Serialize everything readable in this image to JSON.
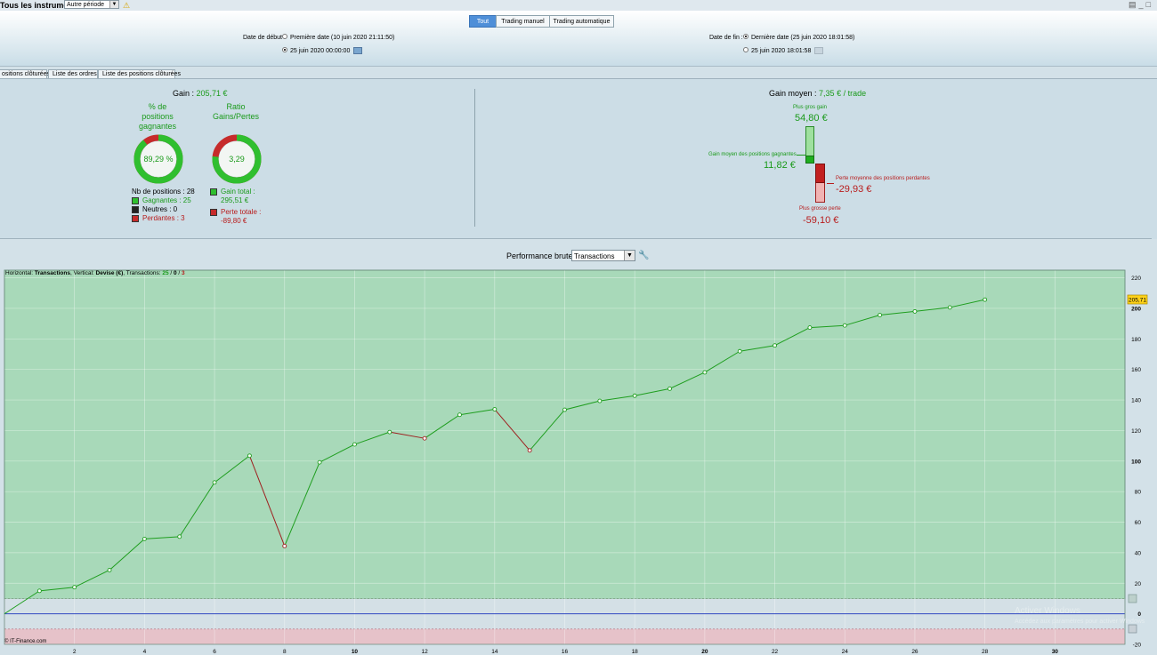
{
  "toolbar": {
    "instruments_label": "Tous les instruments",
    "period_value": "Autre période",
    "warning_icon": "warning-icon"
  },
  "filters": {
    "segments": [
      "Tout",
      "Trading manuel",
      "Trading automatique"
    ],
    "active_segment": "Tout",
    "start": {
      "label": "Date de début :",
      "option_first": "Première date (10 juin 2020 21:11:50)",
      "option_custom": "25 juin 2020 00:00:00"
    },
    "end": {
      "label": "Date de fin :",
      "option_last": "Dernière date (25 juin 2020 18:01:58)",
      "option_custom": "25 juin 2020 18:01:58"
    }
  },
  "tabs": [
    "ositions clôturées",
    "Liste des ordres",
    "Liste des positions clôturées"
  ],
  "summary": {
    "gain_label": "Gain :",
    "gain_value": "205,71 €",
    "winning_pct_title": [
      "% de",
      "positions",
      "gagnantes"
    ],
    "winning_pct_value": "89,29 %",
    "winning_fraction": 0.8929,
    "ratio_title": [
      "Ratio",
      "Gains/Pertes"
    ],
    "ratio_value": "3,29",
    "ratio_fraction": 0.767,
    "positions_label": "Nb de positions : 28",
    "winners": "Gagnantes : 25",
    "neutral": "Neutres : 0",
    "losers": "Perdantes : 3",
    "total_gain_label": "Gain total :",
    "total_gain_value": "295,51 €",
    "total_loss_label": "Perte totale :",
    "total_loss_value": "-89,80 €",
    "avg_gain_label": "Gain moyen :",
    "avg_gain_value": "7,35 € / trade",
    "biggest_gain_label": "Plus gros gain",
    "biggest_gain_value": "54,80 €",
    "avg_win_label": "Gain moyen des positions gagnantes",
    "avg_win_value": "11,82 €",
    "avg_loss_label": "Perte moyenne des positions perdantes",
    "avg_loss_value": "-29,93 €",
    "biggest_loss_label": "Plus grosse perte",
    "biggest_loss_value": "-59,10 €"
  },
  "perf": {
    "label": "Performance brute",
    "select_value": "Transactions",
    "wrench_icon": "wrench-icon"
  },
  "chart_data": {
    "type": "line",
    "info_parts": [
      "Horizontal: ",
      "Transactions",
      ", Vertical: ",
      "Devise (€)",
      ", Transactions: ",
      "25",
      " / ",
      "0",
      " / ",
      "3"
    ],
    "x": [
      0,
      1,
      2,
      3,
      4,
      5,
      6,
      7,
      8,
      9,
      10,
      11,
      12,
      13,
      14,
      15,
      16,
      17,
      18,
      19,
      20,
      21,
      22,
      23,
      24,
      25,
      26,
      27,
      28
    ],
    "y": [
      0,
      15.0,
      17.4,
      28.6,
      49.0,
      50.5,
      86.0,
      103.5,
      44.4,
      99.2,
      110.9,
      119.0,
      114.9,
      130.3,
      133.9,
      107.0,
      133.6,
      139.4,
      142.8,
      147.4,
      158.1,
      171.9,
      175.7,
      187.4,
      188.8,
      195.6,
      198.0,
      200.6,
      205.71
    ],
    "point_colors": [
      "green",
      "green",
      "green",
      "green",
      "green",
      "green",
      "green",
      "red",
      "green",
      "green",
      "green",
      "red",
      "green",
      "green",
      "red",
      "green",
      "green",
      "green",
      "green",
      "green",
      "green",
      "green",
      "green",
      "green",
      "green",
      "green",
      "green",
      "green"
    ],
    "xlim": [
      0,
      32
    ],
    "ylim": [
      -20,
      225
    ],
    "x_ticks": [
      2,
      4,
      6,
      8,
      10,
      12,
      14,
      16,
      18,
      20,
      22,
      24,
      26,
      28,
      30
    ],
    "x_ticks_bold": [
      10,
      20,
      30
    ],
    "y_ticks": [
      -20,
      0,
      20,
      40,
      60,
      80,
      100,
      120,
      140,
      160,
      180,
      200,
      220
    ],
    "y_ticks_bold": [
      0,
      100,
      200
    ],
    "last_value_label": "205,71",
    "upper_band": 10,
    "lower_band": -10,
    "watermark": "© IT-Finance.com",
    "overlay_line1": "Activer Windows",
    "overlay_line2": "Accédez aux paramètres pour activer Windows",
    "colors": {
      "profit_zone": "#a8d9b9",
      "loss_zone": "#e6c2c9",
      "up": "#1f9e1f",
      "down": "#9e1f1f",
      "zero": "#3048c0"
    }
  }
}
